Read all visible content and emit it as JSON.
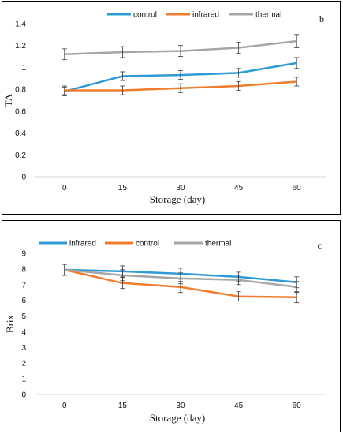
{
  "chart_data": [
    {
      "type": "line",
      "panel_label": "b",
      "xlabel": "Storage (day)",
      "ylabel": "TA",
      "categories": [
        "0",
        "15",
        "30",
        "45",
        "60"
      ],
      "ylim": [
        0,
        1.4
      ],
      "yticks": [
        "0",
        "0.2",
        "0.4",
        "0.6",
        "0.8",
        "1",
        "1.2",
        "1.4"
      ],
      "legend_position": "top",
      "grid": false,
      "series": [
        {
          "name": "control",
          "color": "#2e9bd6",
          "values": [
            0.78,
            0.92,
            0.93,
            0.95,
            1.04
          ],
          "errors": [
            0.04,
            0.04,
            0.04,
            0.04,
            0.05
          ]
        },
        {
          "name": "infrared",
          "color": "#f07d2d",
          "values": [
            0.79,
            0.79,
            0.81,
            0.83,
            0.87
          ],
          "errors": [
            0.04,
            0.04,
            0.04,
            0.04,
            0.04
          ]
        },
        {
          "name": "thermal",
          "color": "#a6a6a6",
          "values": [
            1.12,
            1.14,
            1.15,
            1.18,
            1.24
          ],
          "errors": [
            0.05,
            0.05,
            0.05,
            0.05,
            0.06
          ]
        }
      ]
    },
    {
      "type": "line",
      "panel_label": "c",
      "xlabel": "Storage (day)",
      "ylabel": "Brix",
      "categories": [
        "0",
        "15",
        "30",
        "45",
        "60"
      ],
      "ylim": [
        0,
        9
      ],
      "yticks": [
        "0",
        "1",
        "2",
        "3",
        "4",
        "5",
        "6",
        "7",
        "8",
        "9"
      ],
      "legend_position": "top",
      "grid": false,
      "series": [
        {
          "name": "infrared",
          "color": "#2e9bd6",
          "values": [
            7.95,
            7.85,
            7.7,
            7.5,
            7.15
          ],
          "errors": [
            0.35,
            0.35,
            0.35,
            0.3,
            0.35
          ]
        },
        {
          "name": "control",
          "color": "#f07d2d",
          "values": [
            7.95,
            7.1,
            6.85,
            6.25,
            6.2
          ],
          "errors": [
            0.35,
            0.35,
            0.35,
            0.3,
            0.35
          ]
        },
        {
          "name": "thermal",
          "color": "#a6a6a6",
          "values": [
            7.95,
            7.6,
            7.4,
            7.3,
            6.85
          ],
          "errors": [
            0.35,
            0.35,
            0.35,
            0.3,
            0.35
          ]
        }
      ]
    }
  ]
}
